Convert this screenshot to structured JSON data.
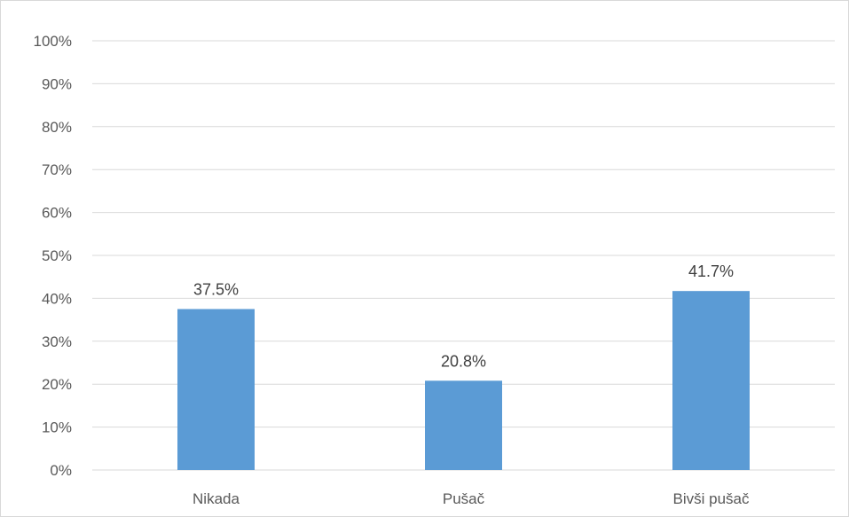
{
  "chart_data": {
    "type": "bar",
    "title": "",
    "xlabel": "",
    "ylabel": "",
    "categories": [
      "Nikada",
      "Pušač",
      "Bivši pušač"
    ],
    "values": [
      37.5,
      20.8,
      41.7
    ],
    "data_labels": [
      "37.5%",
      "20.8%",
      "41.7%"
    ],
    "ylim": [
      0,
      100
    ],
    "y_ticks": [
      0,
      10,
      20,
      30,
      40,
      50,
      60,
      70,
      80,
      90,
      100
    ],
    "y_tick_labels": [
      "0%",
      "10%",
      "20%",
      "30%",
      "40%",
      "50%",
      "60%",
      "70%",
      "80%",
      "90%",
      "100%"
    ],
    "grid": true,
    "legend": "none",
    "bar_color": "#5b9bd5",
    "grid_color": "#d9d9d9"
  }
}
